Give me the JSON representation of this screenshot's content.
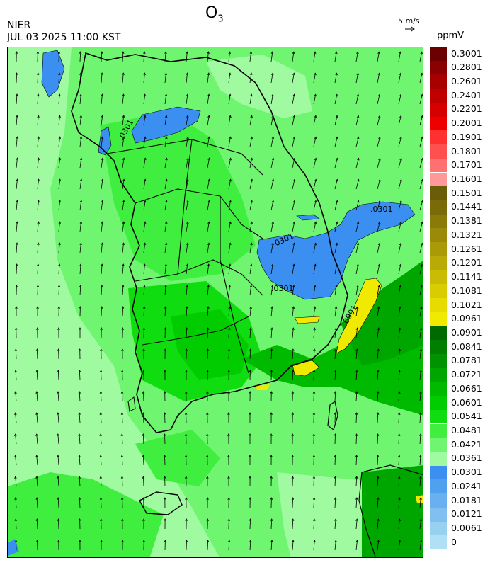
{
  "header": {
    "title_main": "O",
    "title_sub": "3",
    "agency": "NIER",
    "timestamp": "JUL 03 2025 11:00 KST",
    "wind_reference": "5 m/s",
    "unit": "ppmV"
  },
  "map": {
    "variable": "O3",
    "contour_labels": [
      ".0301",
      ".0301",
      ".0301",
      ".0301",
      ".0301",
      ".0901"
    ],
    "wind_direction": "mostly northward (southerly winds)"
  },
  "legend": {
    "bins": [
      {
        "label": "0.3001",
        "color": "#6b0000"
      },
      {
        "label": "0.2801",
        "color": "#8b0000"
      },
      {
        "label": "0.2601",
        "color": "#a80000"
      },
      {
        "label": "0.2401",
        "color": "#c00000"
      },
      {
        "label": "0.2201",
        "color": "#d60000"
      },
      {
        "label": "0.2001",
        "color": "#ee0000"
      },
      {
        "label": "0.1901",
        "color": "#ff3030"
      },
      {
        "label": "0.1801",
        "color": "#ff5050"
      },
      {
        "label": "0.1701",
        "color": "#ff7070"
      },
      {
        "label": "0.1601",
        "color": "#ff9898"
      },
      {
        "label": "0.1501",
        "color": "#6b5d08"
      },
      {
        "label": "0.1441",
        "color": "#7a6b08"
      },
      {
        "label": "0.1381",
        "color": "#8a7a08"
      },
      {
        "label": "0.1321",
        "color": "#9a8a08"
      },
      {
        "label": "0.1261",
        "color": "#aa9a08"
      },
      {
        "label": "0.1201",
        "color": "#baaa06"
      },
      {
        "label": "0.1141",
        "color": "#cabb04"
      },
      {
        "label": "0.1081",
        "color": "#dacc02"
      },
      {
        "label": "0.1021",
        "color": "#e6dc00"
      },
      {
        "label": "0.0961",
        "color": "#f0ea00"
      },
      {
        "label": "0.0901",
        "color": "#006a00"
      },
      {
        "label": "0.0841",
        "color": "#007e00"
      },
      {
        "label": "0.0781",
        "color": "#009200"
      },
      {
        "label": "0.0721",
        "color": "#00a600"
      },
      {
        "label": "0.0661",
        "color": "#00ba00"
      },
      {
        "label": "0.0601",
        "color": "#00cc00"
      },
      {
        "label": "0.0541",
        "color": "#10dd10"
      },
      {
        "label": "0.0481",
        "color": "#40ee40"
      },
      {
        "label": "0.0421",
        "color": "#70f570"
      },
      {
        "label": "0.0361",
        "color": "#a0faa0"
      },
      {
        "label": "0.0301",
        "color": "#3a8ff0"
      },
      {
        "label": "0.0241",
        "color": "#50a0f0"
      },
      {
        "label": "0.0181",
        "color": "#68b0f0"
      },
      {
        "label": "0.0121",
        "color": "#80c0f0"
      },
      {
        "label": "0.0061",
        "color": "#98d0f0"
      },
      {
        "label": "0",
        "color": "#b0e0f5"
      }
    ]
  }
}
